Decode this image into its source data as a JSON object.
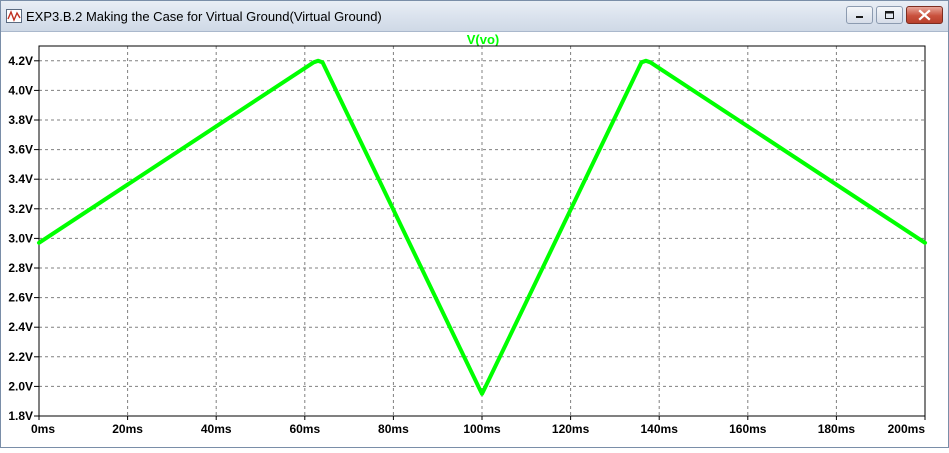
{
  "window": {
    "title": "EXP3.B.2 Making the Case for Virtual Ground(Virtual Ground)",
    "app_icon": "waveform-icon",
    "controls": [
      "minimize-icon",
      "maximize-icon",
      "close-icon"
    ]
  },
  "colors": {
    "trace": "#00ff00",
    "plot_background": "#ffffff",
    "grid": "#808080",
    "axis_text": "#000000"
  },
  "chart_data": {
    "type": "line",
    "title": "V(vo)",
    "xlabel": "",
    "ylabel": "",
    "xlim": [
      0,
      200
    ],
    "ylim": [
      1.8,
      4.3
    ],
    "grid": true,
    "grid_style": "dashed",
    "x_ticks": [
      0,
      20,
      40,
      60,
      80,
      100,
      120,
      140,
      160,
      180,
      200
    ],
    "x_tick_labels": [
      "0ms",
      "20ms",
      "40ms",
      "60ms",
      "80ms",
      "100ms",
      "120ms",
      "140ms",
      "160ms",
      "180ms",
      "200ms"
    ],
    "y_ticks": [
      1.8,
      2.0,
      2.2,
      2.4,
      2.6,
      2.8,
      3.0,
      3.2,
      3.4,
      3.6,
      3.8,
      4.0,
      4.2
    ],
    "y_tick_labels": [
      "1.8V",
      "2.0V",
      "2.2V",
      "2.4V",
      "2.6V",
      "2.8V",
      "3.0V",
      "3.2V",
      "3.4V",
      "3.6V",
      "3.8V",
      "4.0V",
      "4.2V"
    ],
    "series": [
      {
        "name": "V(vo)",
        "x": [
          0,
          62,
          63,
          64,
          99.5,
          100,
          100.5,
          136,
          137,
          138,
          200
        ],
        "y": [
          2.97,
          4.19,
          4.2,
          4.19,
          1.98,
          1.95,
          1.98,
          4.19,
          4.2,
          4.19,
          2.97
        ]
      }
    ]
  }
}
